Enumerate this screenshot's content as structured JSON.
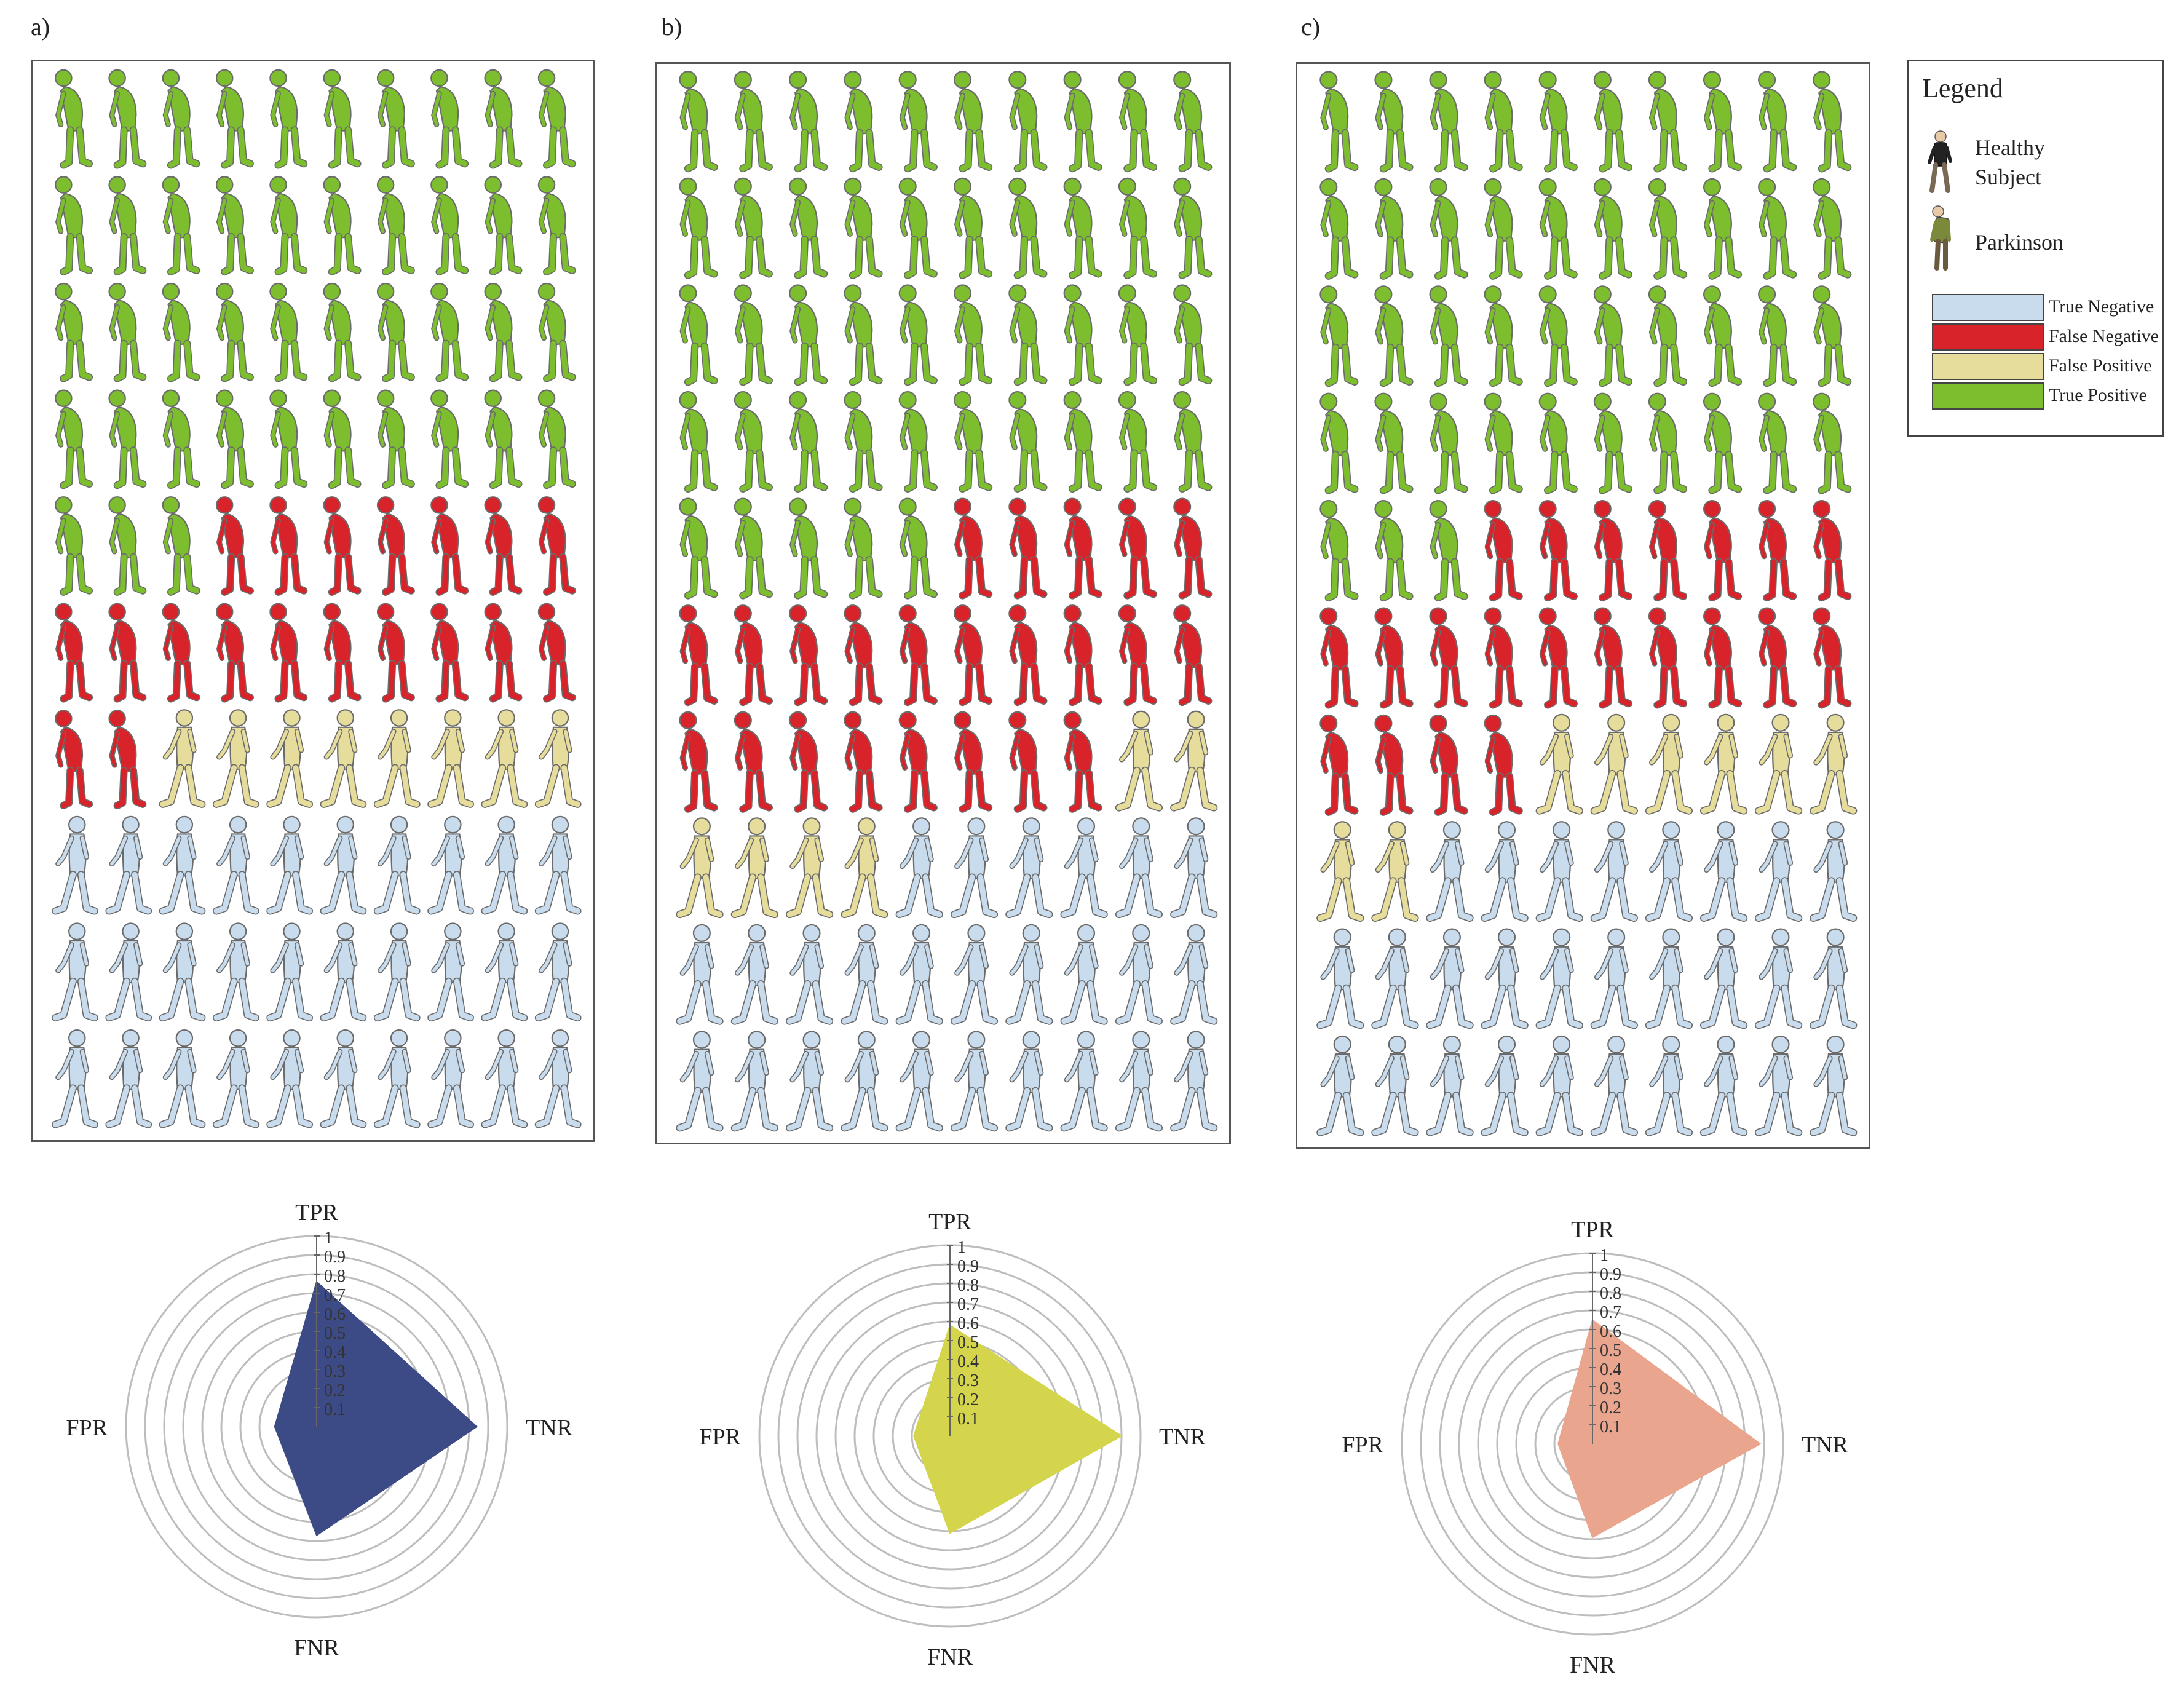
{
  "figure": {
    "colors": {
      "true_negative": "#c9dced",
      "false_negative": "#d9232a",
      "false_positive": "#e6dc9b",
      "true_positive": "#7cbe2e",
      "outline": "#6b6b6b",
      "grid": "#bdbdbd"
    }
  },
  "legend": {
    "title": "Legend",
    "healthy_label_line1": "Healthy",
    "healthy_label_line2": "Subject",
    "parkinson_label": "Parkinson",
    "entries": [
      {
        "label": "True Negative",
        "color": "#c9dced"
      },
      {
        "label": "False Negative",
        "color": "#d9232a"
      },
      {
        "label": "False Positive",
        "color": "#e6dc9b"
      },
      {
        "label": "True Positive",
        "color": "#7cbe2e"
      }
    ]
  },
  "chart_data": [
    {
      "panel": "a)",
      "type": "pictogram",
      "rows": 10,
      "per_row": 10,
      "counts": {
        "true_positive": 43,
        "false_negative": 19,
        "false_positive": 8,
        "true_negative": 30
      },
      "order": [
        "true_positive",
        "false_negative",
        "false_positive",
        "true_negative"
      ],
      "radar": {
        "type": "radar",
        "axes": [
          "TPR",
          "TNR",
          "FNR",
          "FPR"
        ],
        "values": [
          0.76,
          0.84,
          0.57,
          0.22
        ],
        "fill": "#3c4a86",
        "ticks": [
          "0.1",
          "0.2",
          "0.3",
          "0.4",
          "0.5",
          "0.6",
          "0.7",
          "0.8",
          "0.9",
          "1"
        ],
        "rlim": [
          0,
          1
        ]
      }
    },
    {
      "panel": "b)",
      "type": "pictogram",
      "rows": 10,
      "per_row": 10,
      "counts": {
        "true_positive": 45,
        "false_negative": 23,
        "false_positive": 6,
        "true_negative": 26
      },
      "order": [
        "true_positive",
        "false_negative",
        "false_positive",
        "true_negative"
      ],
      "radar": {
        "type": "radar",
        "axes": [
          "TPR",
          "TNR",
          "FNR",
          "FPR"
        ],
        "values": [
          0.58,
          0.9,
          0.51,
          0.19
        ],
        "fill": "#d4d54c",
        "ticks": [
          "0.1",
          "0.2",
          "0.3",
          "0.4",
          "0.5",
          "0.6",
          "0.7",
          "0.8",
          "0.9",
          "1"
        ],
        "rlim": [
          0,
          1
        ]
      }
    },
    {
      "panel": "c)",
      "type": "pictogram",
      "rows": 10,
      "per_row": 10,
      "counts": {
        "true_positive": 43,
        "false_negative": 21,
        "false_positive": 8,
        "true_negative": 28
      },
      "order": [
        "true_positive",
        "false_negative",
        "false_positive",
        "true_negative"
      ],
      "radar": {
        "type": "radar",
        "axes": [
          "TPR",
          "TNR",
          "FNR",
          "FPR"
        ],
        "values": [
          0.65,
          0.88,
          0.49,
          0.18
        ],
        "fill": "#e9a58d",
        "ticks": [
          "0.1",
          "0.2",
          "0.3",
          "0.4",
          "0.5",
          "0.6",
          "0.7",
          "0.8",
          "0.9",
          "1"
        ],
        "rlim": [
          0,
          1
        ]
      }
    }
  ]
}
